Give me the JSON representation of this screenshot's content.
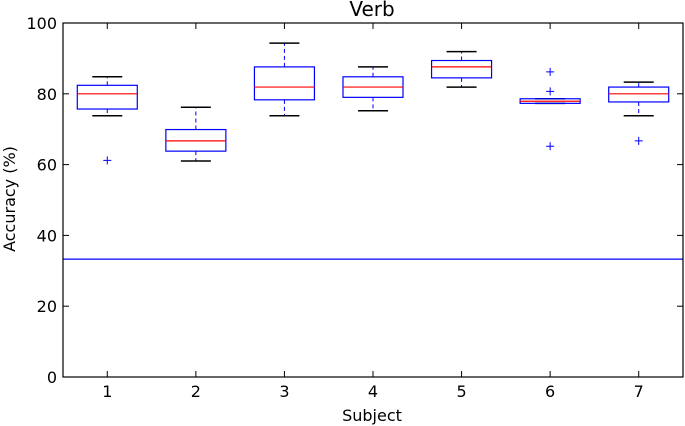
{
  "chart_data": {
    "type": "boxplot",
    "title": "Verb",
    "xlabel": "Subject",
    "ylabel": "Accuracy (%)",
    "categories": [
      "1",
      "2",
      "3",
      "4",
      "5",
      "6",
      "7"
    ],
    "ylim": [
      0,
      100
    ],
    "xlim": [
      0.5,
      7.5
    ],
    "yticks": [
      "0",
      "20",
      "40",
      "60",
      "80",
      "100"
    ],
    "reference_line": 33.3,
    "colors": {
      "box": "#0000ff",
      "median": "#ff0000",
      "whisker": "#000000",
      "outlier": "#0000ff",
      "reference": "#0000ff"
    },
    "boxes": [
      {
        "label": "1",
        "whisker_low": 73.8,
        "q1": 75.7,
        "median": 80.0,
        "q3": 82.4,
        "whisker_high": 84.8,
        "outliers": [
          61.2
        ]
      },
      {
        "label": "2",
        "whisker_low": 61.0,
        "q1": 63.8,
        "median": 66.7,
        "q3": 69.9,
        "whisker_high": 76.2,
        "outliers": []
      },
      {
        "label": "3",
        "whisker_low": 73.8,
        "q1": 78.3,
        "median": 81.9,
        "q3": 87.6,
        "whisker_high": 94.3,
        "outliers": []
      },
      {
        "label": "4",
        "whisker_low": 75.2,
        "q1": 79.0,
        "median": 81.9,
        "q3": 84.8,
        "whisker_high": 87.6,
        "outliers": []
      },
      {
        "label": "5",
        "whisker_low": 81.9,
        "q1": 84.5,
        "median": 87.6,
        "q3": 89.4,
        "whisker_high": 91.9,
        "outliers": []
      },
      {
        "label": "6",
        "whisker_low": 77.3,
        "q1": 77.3,
        "median": 77.9,
        "q3": 78.6,
        "whisker_high": 78.6,
        "outliers": [
          86.2,
          80.7,
          65.2
        ]
      },
      {
        "label": "7",
        "whisker_low": 73.8,
        "q1": 77.7,
        "median": 80.0,
        "q3": 81.9,
        "whisker_high": 83.3,
        "outliers": [
          66.7
        ]
      }
    ]
  }
}
